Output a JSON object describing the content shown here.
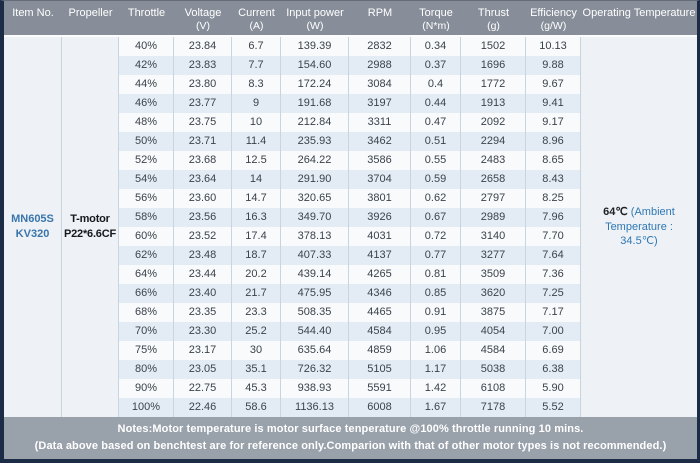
{
  "header": {
    "columns": [
      {
        "label": "Item No.",
        "unit": ""
      },
      {
        "label": "Propeller",
        "unit": ""
      },
      {
        "label": "Throttle",
        "unit": ""
      },
      {
        "label": "Voltage",
        "unit": "(V)"
      },
      {
        "label": "Current",
        "unit": "(A)"
      },
      {
        "label": "Input power",
        "unit": "(W)"
      },
      {
        "label": "RPM",
        "unit": ""
      },
      {
        "label": "Torque",
        "unit": "(N*m)"
      },
      {
        "label": "Thrust",
        "unit": "(g)"
      },
      {
        "label": "Efficiency",
        "unit": "(g/W)"
      },
      {
        "label": "Operating Temperature",
        "unit": ""
      }
    ]
  },
  "item": {
    "line1": "MN605S",
    "line2": "KV320"
  },
  "propeller": {
    "line1": "T-motor",
    "line2": "P22*6.6CF"
  },
  "operating_temperature": {
    "value": "64℃",
    "ambient_line1": " (Ambient",
    "ambient_line2": "Temperature :  34.5℃)"
  },
  "row_keys": [
    "throttle",
    "voltage",
    "current",
    "input_power",
    "rpm",
    "torque",
    "thrust",
    "efficiency"
  ],
  "rows": [
    {
      "throttle": "40%",
      "voltage": "23.84",
      "current": "6.7",
      "input_power": "139.39",
      "rpm": "2832",
      "torque": "0.34",
      "thrust": "1502",
      "efficiency": "10.13"
    },
    {
      "throttle": "42%",
      "voltage": "23.83",
      "current": "7.7",
      "input_power": "154.60",
      "rpm": "2988",
      "torque": "0.37",
      "thrust": "1696",
      "efficiency": "9.88"
    },
    {
      "throttle": "44%",
      "voltage": "23.80",
      "current": "8.3",
      "input_power": "172.24",
      "rpm": "3084",
      "torque": "0.4",
      "thrust": "1772",
      "efficiency": "9.67"
    },
    {
      "throttle": "46%",
      "voltage": "23.77",
      "current": "9",
      "input_power": "191.68",
      "rpm": "3197",
      "torque": "0.44",
      "thrust": "1913",
      "efficiency": "9.41"
    },
    {
      "throttle": "48%",
      "voltage": "23.75",
      "current": "10",
      "input_power": "212.84",
      "rpm": "3311",
      "torque": "0.47",
      "thrust": "2092",
      "efficiency": "9.17"
    },
    {
      "throttle": "50%",
      "voltage": "23.71",
      "current": "11.4",
      "input_power": "235.93",
      "rpm": "3462",
      "torque": "0.51",
      "thrust": "2294",
      "efficiency": "8.96"
    },
    {
      "throttle": "52%",
      "voltage": "23.68",
      "current": "12.5",
      "input_power": "264.22",
      "rpm": "3586",
      "torque": "0.55",
      "thrust": "2483",
      "efficiency": "8.65"
    },
    {
      "throttle": "54%",
      "voltage": "23.64",
      "current": "14",
      "input_power": "291.90",
      "rpm": "3704",
      "torque": "0.59",
      "thrust": "2658",
      "efficiency": "8.43"
    },
    {
      "throttle": "56%",
      "voltage": "23.60",
      "current": "14.7",
      "input_power": "320.65",
      "rpm": "3801",
      "torque": "0.62",
      "thrust": "2797",
      "efficiency": "8.25"
    },
    {
      "throttle": "58%",
      "voltage": "23.56",
      "current": "16.3",
      "input_power": "349.70",
      "rpm": "3926",
      "torque": "0.67",
      "thrust": "2989",
      "efficiency": "7.96"
    },
    {
      "throttle": "60%",
      "voltage": "23.52",
      "current": "17.4",
      "input_power": "378.13",
      "rpm": "4031",
      "torque": "0.72",
      "thrust": "3140",
      "efficiency": "7.70"
    },
    {
      "throttle": "62%",
      "voltage": "23.48",
      "current": "18.7",
      "input_power": "407.33",
      "rpm": "4137",
      "torque": "0.77",
      "thrust": "3277",
      "efficiency": "7.64"
    },
    {
      "throttle": "64%",
      "voltage": "23.44",
      "current": "20.2",
      "input_power": "439.14",
      "rpm": "4265",
      "torque": "0.81",
      "thrust": "3509",
      "efficiency": "7.36"
    },
    {
      "throttle": "66%",
      "voltage": "23.40",
      "current": "21.7",
      "input_power": "475.95",
      "rpm": "4346",
      "torque": "0.85",
      "thrust": "3620",
      "efficiency": "7.25"
    },
    {
      "throttle": "68%",
      "voltage": "23.35",
      "current": "23.3",
      "input_power": "508.35",
      "rpm": "4465",
      "torque": "0.91",
      "thrust": "3875",
      "efficiency": "7.17"
    },
    {
      "throttle": "70%",
      "voltage": "23.30",
      "current": "25.2",
      "input_power": "544.40",
      "rpm": "4584",
      "torque": "0.95",
      "thrust": "4054",
      "efficiency": "7.00"
    },
    {
      "throttle": "75%",
      "voltage": "23.17",
      "current": "30",
      "input_power": "635.64",
      "rpm": "4859",
      "torque": "1.06",
      "thrust": "4584",
      "efficiency": "6.69"
    },
    {
      "throttle": "80%",
      "voltage": "23.05",
      "current": "35.1",
      "input_power": "726.32",
      "rpm": "5105",
      "torque": "1.17",
      "thrust": "5038",
      "efficiency": "6.38"
    },
    {
      "throttle": "90%",
      "voltage": "22.75",
      "current": "45.3",
      "input_power": "938.93",
      "rpm": "5591",
      "torque": "1.42",
      "thrust": "6108",
      "efficiency": "5.90"
    },
    {
      "throttle": "100%",
      "voltage": "22.46",
      "current": "58.6",
      "input_power": "1136.13",
      "rpm": "6008",
      "torque": "1.67",
      "thrust": "7178",
      "efficiency": "5.52"
    }
  ],
  "notes": {
    "line1": "Notes:Motor temperature is motor surface tenperature @100% throttle running 10 mins.",
    "line2": "(Data above based on benchtest are for reference only.Comparion with that of other motor types is not recommended.)"
  },
  "colors": {
    "border_navy": "#1d2c46",
    "header_gray": "#878e99",
    "notes_gray": "#99a1ab",
    "stripe_blue": "#e3ecf4",
    "stripe_white": "#f8fafc",
    "merged_cell_bg": "#eef2f6",
    "item_blue": "#3a75ac",
    "ambient_blue": "#2f77b4",
    "data_text": "#3b424a"
  }
}
